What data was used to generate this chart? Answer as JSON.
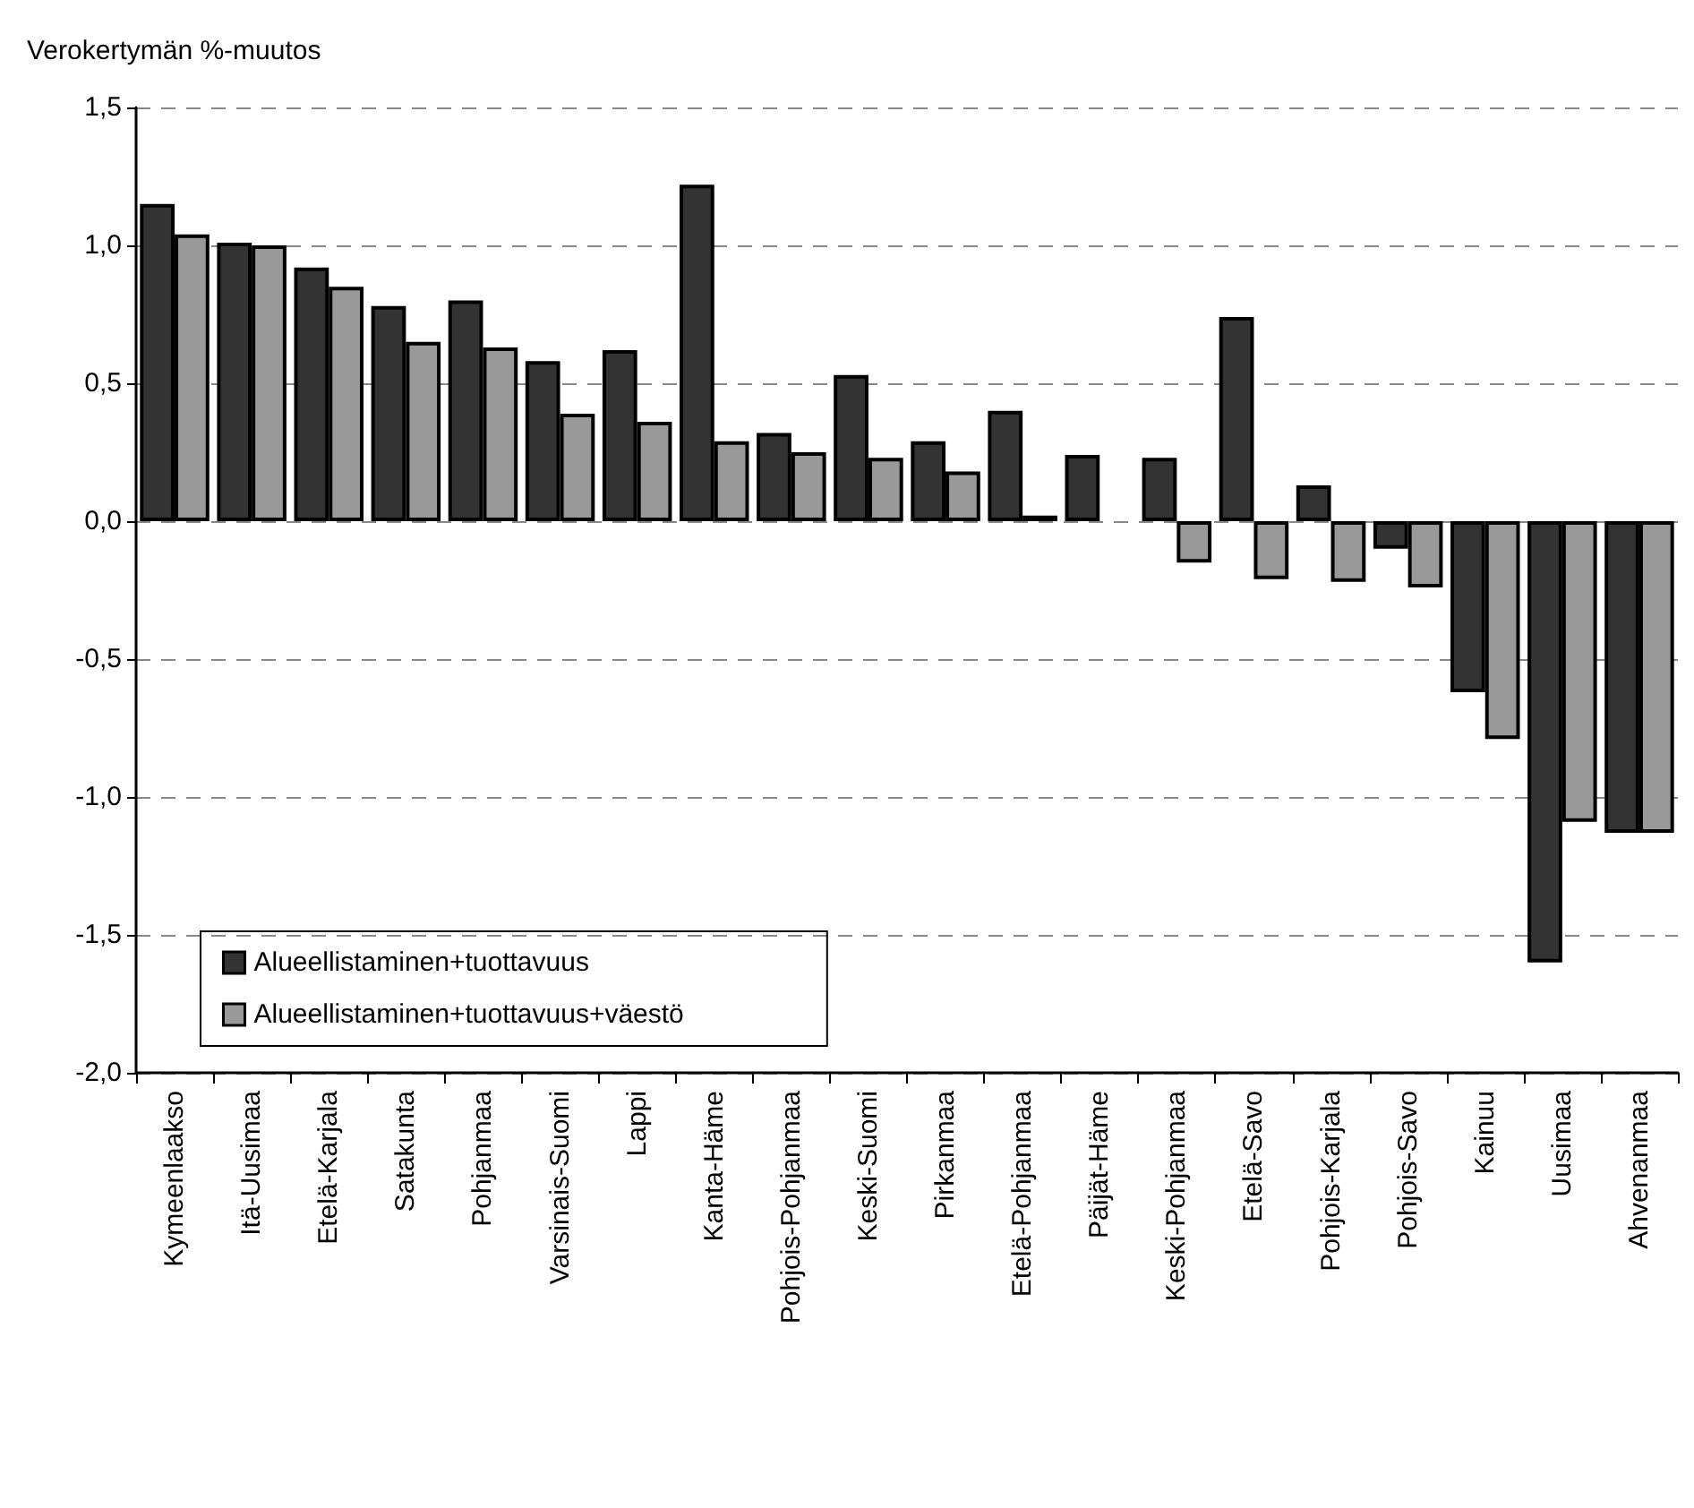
{
  "chart_data": {
    "type": "bar",
    "ylabel": "Verokertymän %-muutos",
    "categories": [
      "Kymeenlaakso",
      "Itä-Uusimaa",
      "Etelä-Karjala",
      "Satakunta",
      "Pohjanmaa",
      "Varsinais-Suomi",
      "Lappi",
      "Kanta-Häme",
      "Pohjois-Pohjanmaa",
      "Keski-Suomi",
      "Pirkanmaa",
      "Etelä-Pohjanmaa",
      "Päijät-Häme",
      "Keski-Pohjanmaa",
      "Etelä-Savo",
      "Pohjois-Karjala",
      "Pohjois-Savo",
      "Kainuu",
      "Uusimaa",
      "Ahvenanmaa"
    ],
    "series": [
      {
        "name": "Alueellistaminen+tuottavuus",
        "color": "#333333",
        "values": [
          1.15,
          1.01,
          0.92,
          0.78,
          0.8,
          0.58,
          0.62,
          1.22,
          0.32,
          0.53,
          0.29,
          0.4,
          0.24,
          0.23,
          0.74,
          0.13,
          -0.1,
          -0.62,
          -1.6,
          -1.13
        ]
      },
      {
        "name": "Alueellistaminen+tuottavuus+väestö",
        "color": "#999999",
        "values": [
          1.04,
          1.0,
          0.85,
          0.65,
          0.63,
          0.39,
          0.36,
          0.29,
          0.25,
          0.23,
          0.18,
          0.02,
          null,
          -0.15,
          -0.21,
          -0.22,
          -0.24,
          -0.79,
          -1.09,
          -1.13
        ]
      }
    ],
    "ylim": [
      -2,
      1.5
    ],
    "yticks": [
      {
        "value": -2,
        "label": "-2,0"
      },
      {
        "value": -1.5,
        "label": "-1,5"
      },
      {
        "value": -1,
        "label": "-1,0"
      },
      {
        "value": -0.5,
        "label": "-0,5"
      },
      {
        "value": 0,
        "label": "0,0"
      },
      {
        "value": 0.5,
        "label": "0,5"
      },
      {
        "value": 1,
        "label": "1,0"
      },
      {
        "value": 1.5,
        "label": "1,5"
      }
    ],
    "grid": "y",
    "legend": "bottom left"
  }
}
